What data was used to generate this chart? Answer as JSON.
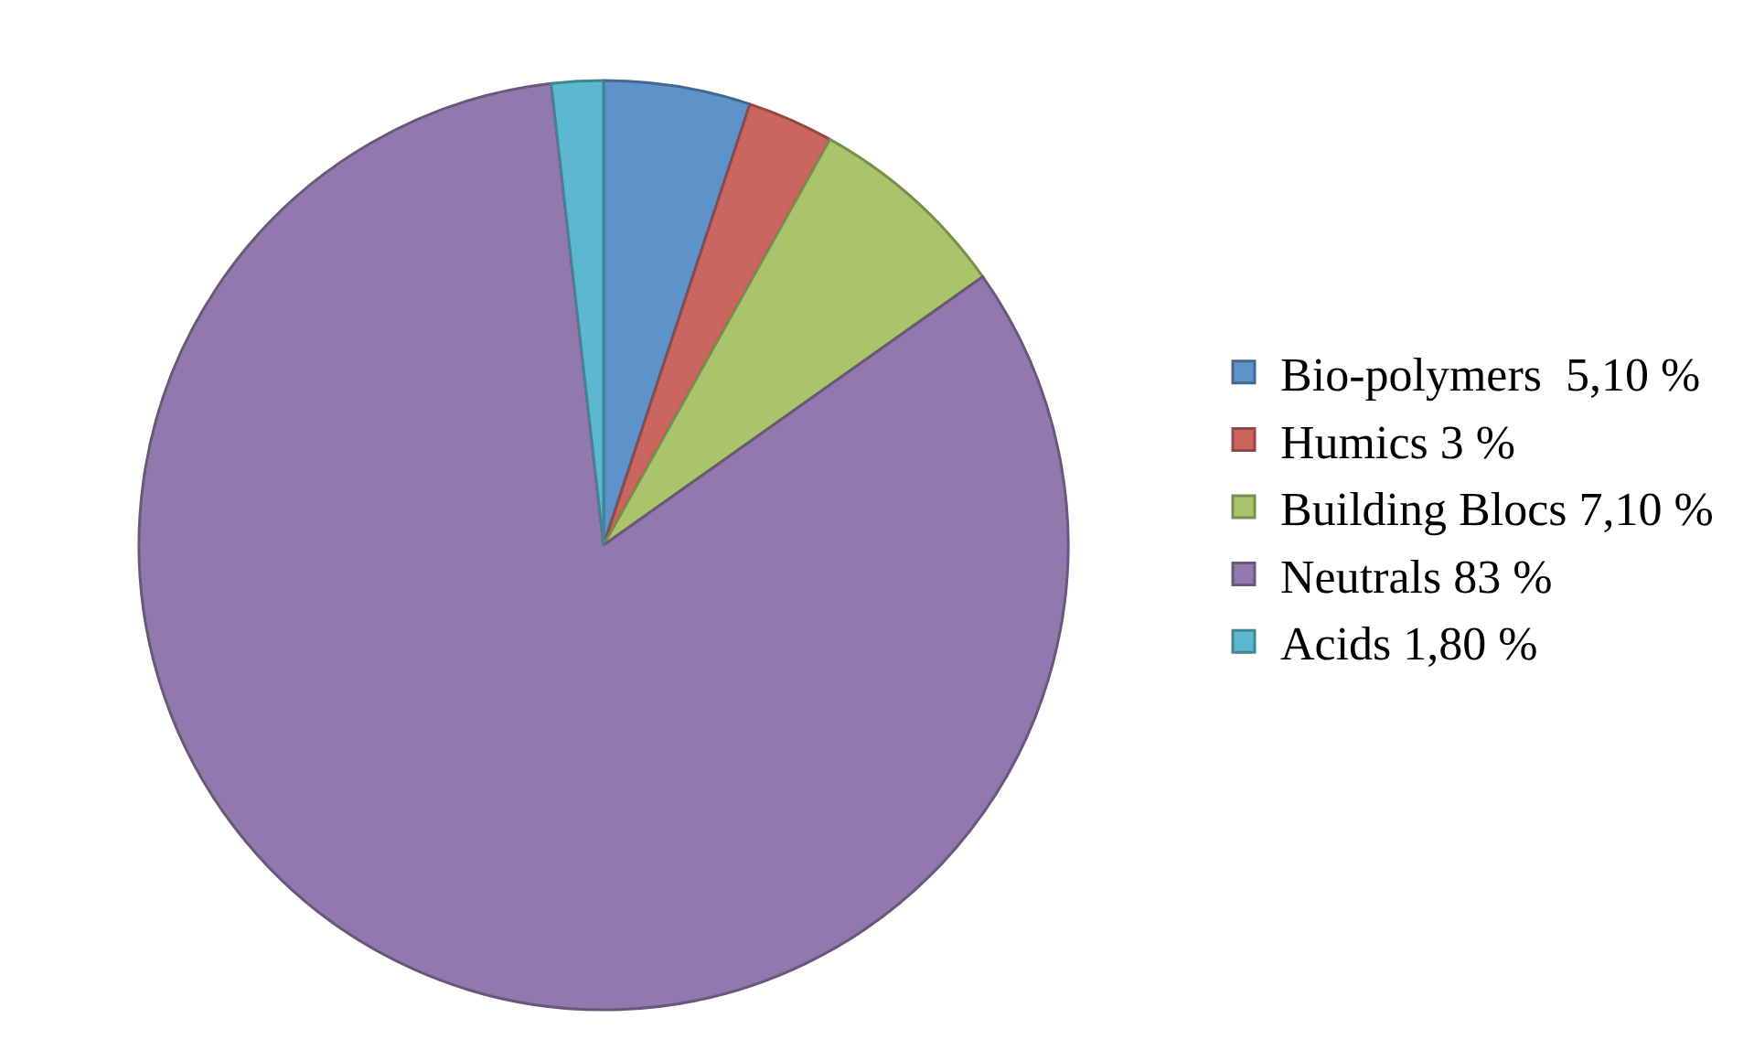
{
  "chart_data": {
    "type": "pie",
    "categories": [
      "Bio-polymers  5,10 %",
      "Humics 3 %",
      "Building Blocs 7,10 %",
      "Neutrals 83 %",
      "Acids 1,80 %"
    ],
    "values": [
      5.1,
      3,
      7.1,
      83,
      1.8
    ],
    "colors": [
      "#5e93c9",
      "#cb655f",
      "#a9c46b",
      "#9279ad",
      "#5bb8d0"
    ],
    "legend": "right"
  }
}
